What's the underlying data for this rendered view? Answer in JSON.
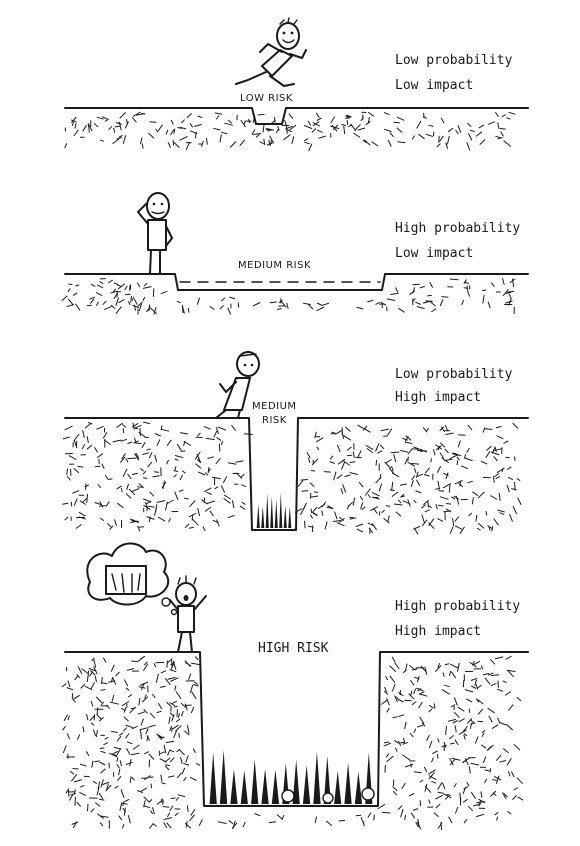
{
  "panels": [
    {
      "risk_label": "LOW RISK",
      "probability": "Low probability",
      "impact": "Low impact"
    },
    {
      "risk_label": "MEDIUM RISK",
      "probability": "High probability",
      "impact": "Low impact"
    },
    {
      "risk_label_line1": "MEDIUM",
      "risk_label_line2": "RISK",
      "probability": "Low probability",
      "impact": "High impact"
    },
    {
      "risk_label": "HIGH RISK",
      "probability": "High probability",
      "impact": "High impact"
    }
  ]
}
